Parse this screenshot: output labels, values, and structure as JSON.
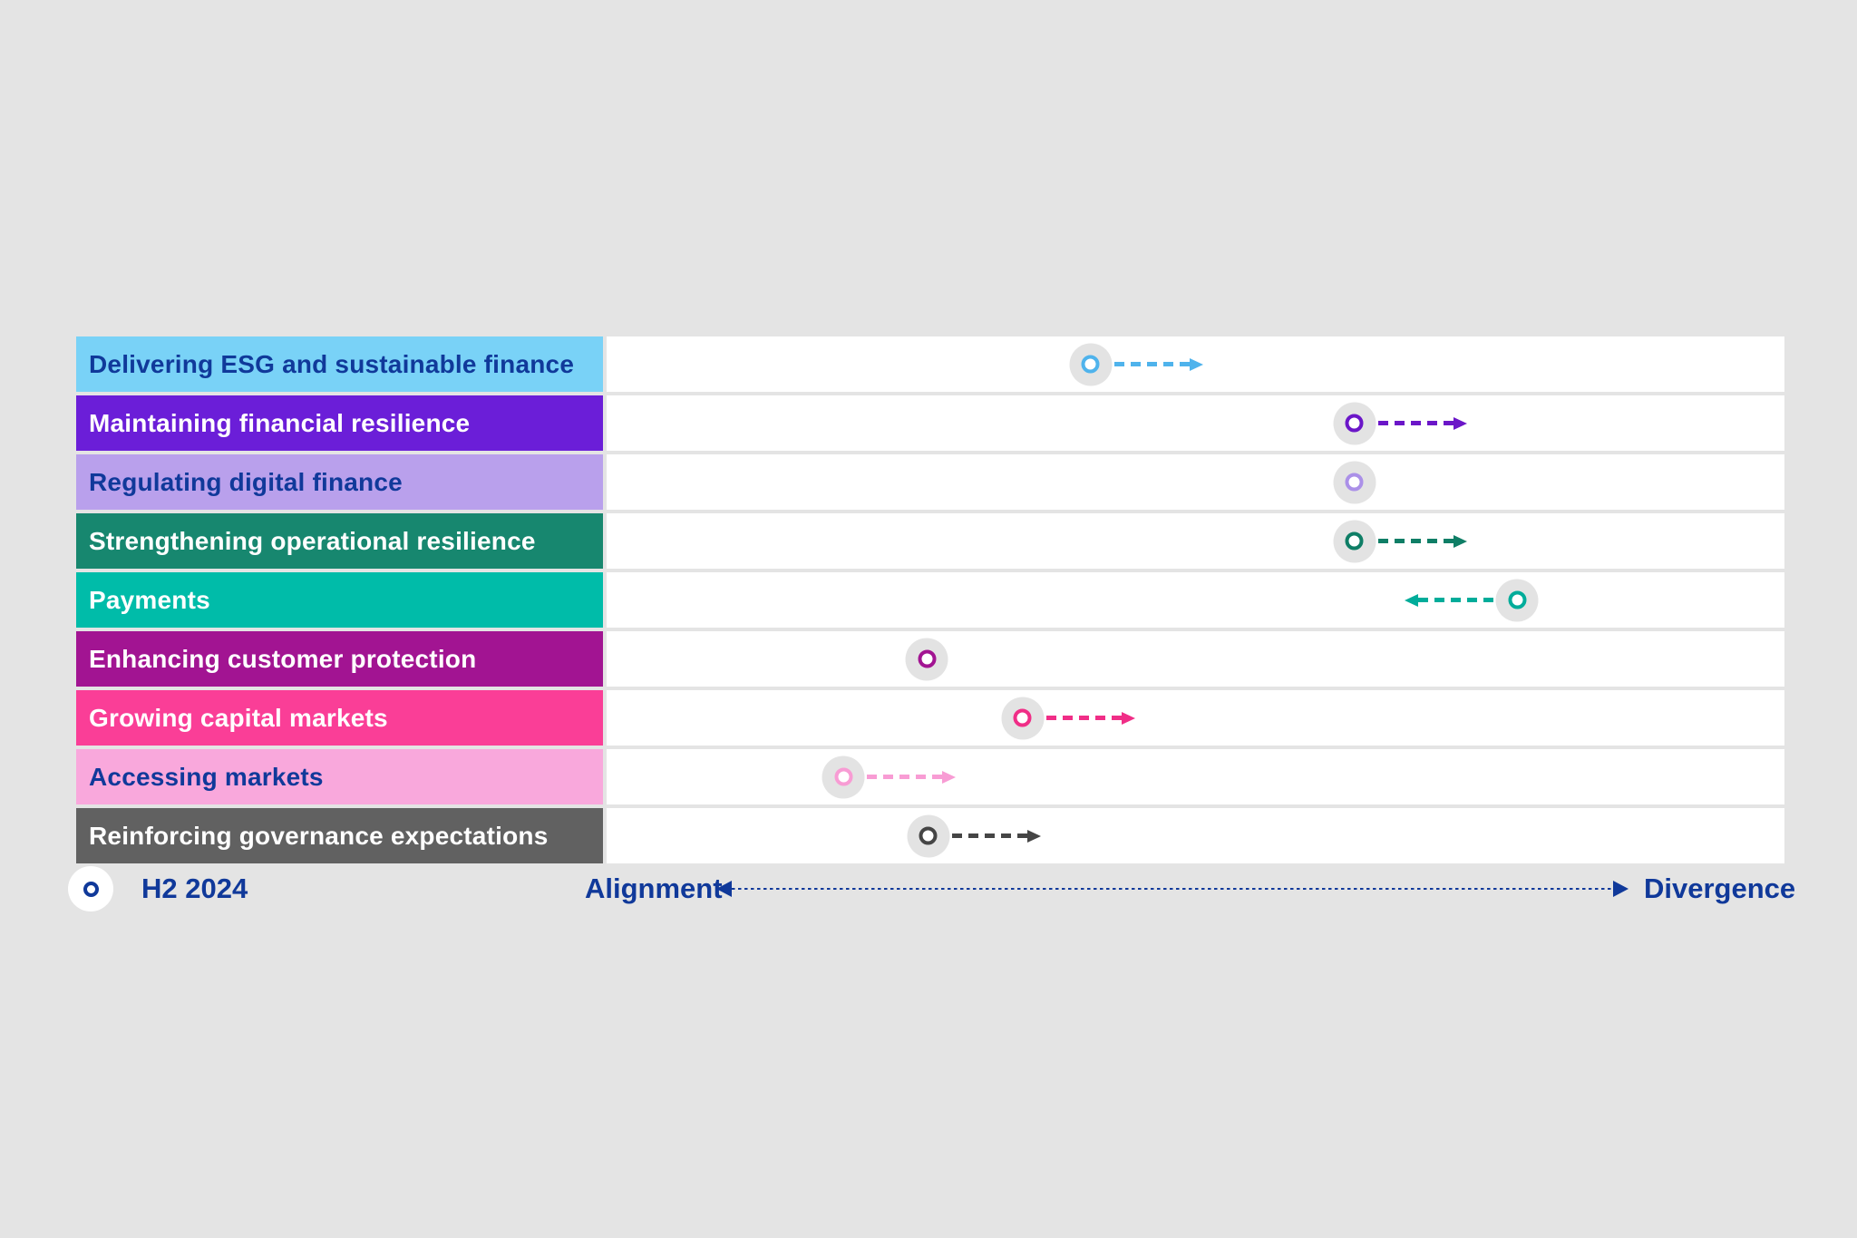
{
  "background_color": "#E4E4E4",
  "legend": {
    "marker_label": "H2 2024"
  },
  "axis": {
    "left_label": "Alignment",
    "right_label": "Divergence"
  },
  "chart_data": {
    "type": "scatter",
    "subtype": "dot-plot-with-trend-arrows",
    "title": "",
    "description": "Regulatory themes positioned on a qualitative Alignment-to-Divergence scale; open circle marks the H2 2024 position, dashed arrow shows direction of travel",
    "x_axis": {
      "left_end": "Alignment",
      "right_end": "Divergence",
      "scale": "qualitative 0-100"
    },
    "legend_entries": [
      {
        "marker": "open-circle",
        "label": "H2 2024"
      }
    ],
    "rows": [
      {
        "label": "Delivering ESG and sustainable finance",
        "bar_color": "#79D2F7",
        "label_text_color": "#10399A",
        "marker_color": "#4FB3EC",
        "position_pct": 41.1,
        "trend": "toward-divergence"
      },
      {
        "label": "Maintaining financial resilience",
        "bar_color": "#6B1ED8",
        "label_text_color": "#FFFFFF",
        "marker_color": "#6B16C8",
        "position_pct": 63.5,
        "trend": "toward-divergence"
      },
      {
        "label": "Regulating digital finance",
        "bar_color": "#B9A0EC",
        "label_text_color": "#10399A",
        "marker_color": "#AB90E8",
        "position_pct": 63.5,
        "trend": "none"
      },
      {
        "label": "Strengthening operational resilience",
        "bar_color": "#17876F",
        "label_text_color": "#FFFFFF",
        "marker_color": "#0F7E66",
        "position_pct": 63.5,
        "trend": "toward-divergence"
      },
      {
        "label": "Payments",
        "bar_color": "#00BCA9",
        "label_text_color": "#FFFFFF",
        "marker_color": "#00AC9A",
        "position_pct": 77.3,
        "trend": "toward-alignment"
      },
      {
        "label": "Enhancing customer protection",
        "bar_color": "#A21492",
        "label_text_color": "#FFFFFF",
        "marker_color": "#A21492",
        "position_pct": 27.2,
        "trend": "none"
      },
      {
        "label": "Growing capital markets",
        "bar_color": "#FA3E97",
        "label_text_color": "#FFFFFF",
        "marker_color": "#F02E87",
        "position_pct": 35.3,
        "trend": "toward-divergence"
      },
      {
        "label": "Accessing markets",
        "bar_color": "#F9A8DC",
        "label_text_color": "#10399A",
        "marker_color": "#F89CD4",
        "position_pct": 20.1,
        "trend": "toward-divergence"
      },
      {
        "label": "Reinforcing governance expectations",
        "bar_color": "#616161",
        "label_text_color": "#FFFFFF",
        "marker_color": "#454545",
        "position_pct": 27.3,
        "trend": "toward-divergence"
      }
    ]
  },
  "colors": {
    "navy_text": "#10399A",
    "track_background": "#FFFFFF",
    "marker_halo": "#E3E3E3"
  }
}
